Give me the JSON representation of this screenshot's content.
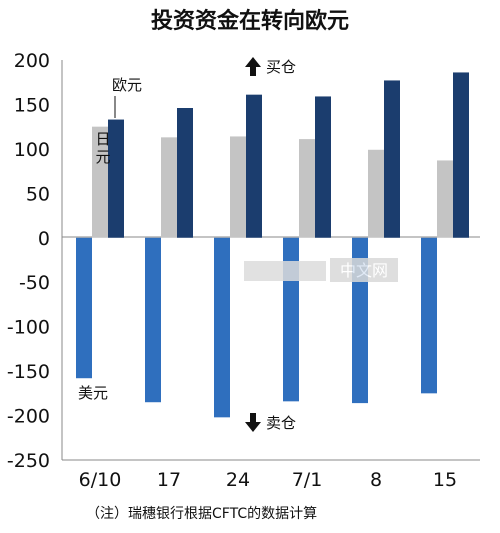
{
  "chart_data": {
    "type": "bar",
    "title": "投资资金在转向欧元",
    "categories": [
      "6/10",
      "17",
      "24",
      "7/1",
      "8",
      "15"
    ],
    "series": [
      {
        "name": "美元",
        "color": "#2f6fbe",
        "values": [
          -158,
          -185,
          -202,
          -184,
          -186,
          -175
        ]
      },
      {
        "name": "日元",
        "color": "#c4c4c4",
        "values": [
          125,
          113,
          114,
          111,
          99,
          87
        ]
      },
      {
        "name": "欧元",
        "color": "#1b3d6e",
        "values": [
          133,
          146,
          161,
          159,
          177,
          186
        ]
      }
    ],
    "ylim": [
      -250,
      200
    ],
    "yticks": [
      200,
      150,
      100,
      50,
      0,
      -50,
      -100,
      -150,
      -200,
      -250
    ],
    "xlabel": "",
    "ylabel": "",
    "grid": false,
    "annotations": {
      "buy": "买仓",
      "sell": "卖仓",
      "watermark": "中文网"
    },
    "note": "（注）瑞穗银行根据CFTC的数据计算"
  }
}
